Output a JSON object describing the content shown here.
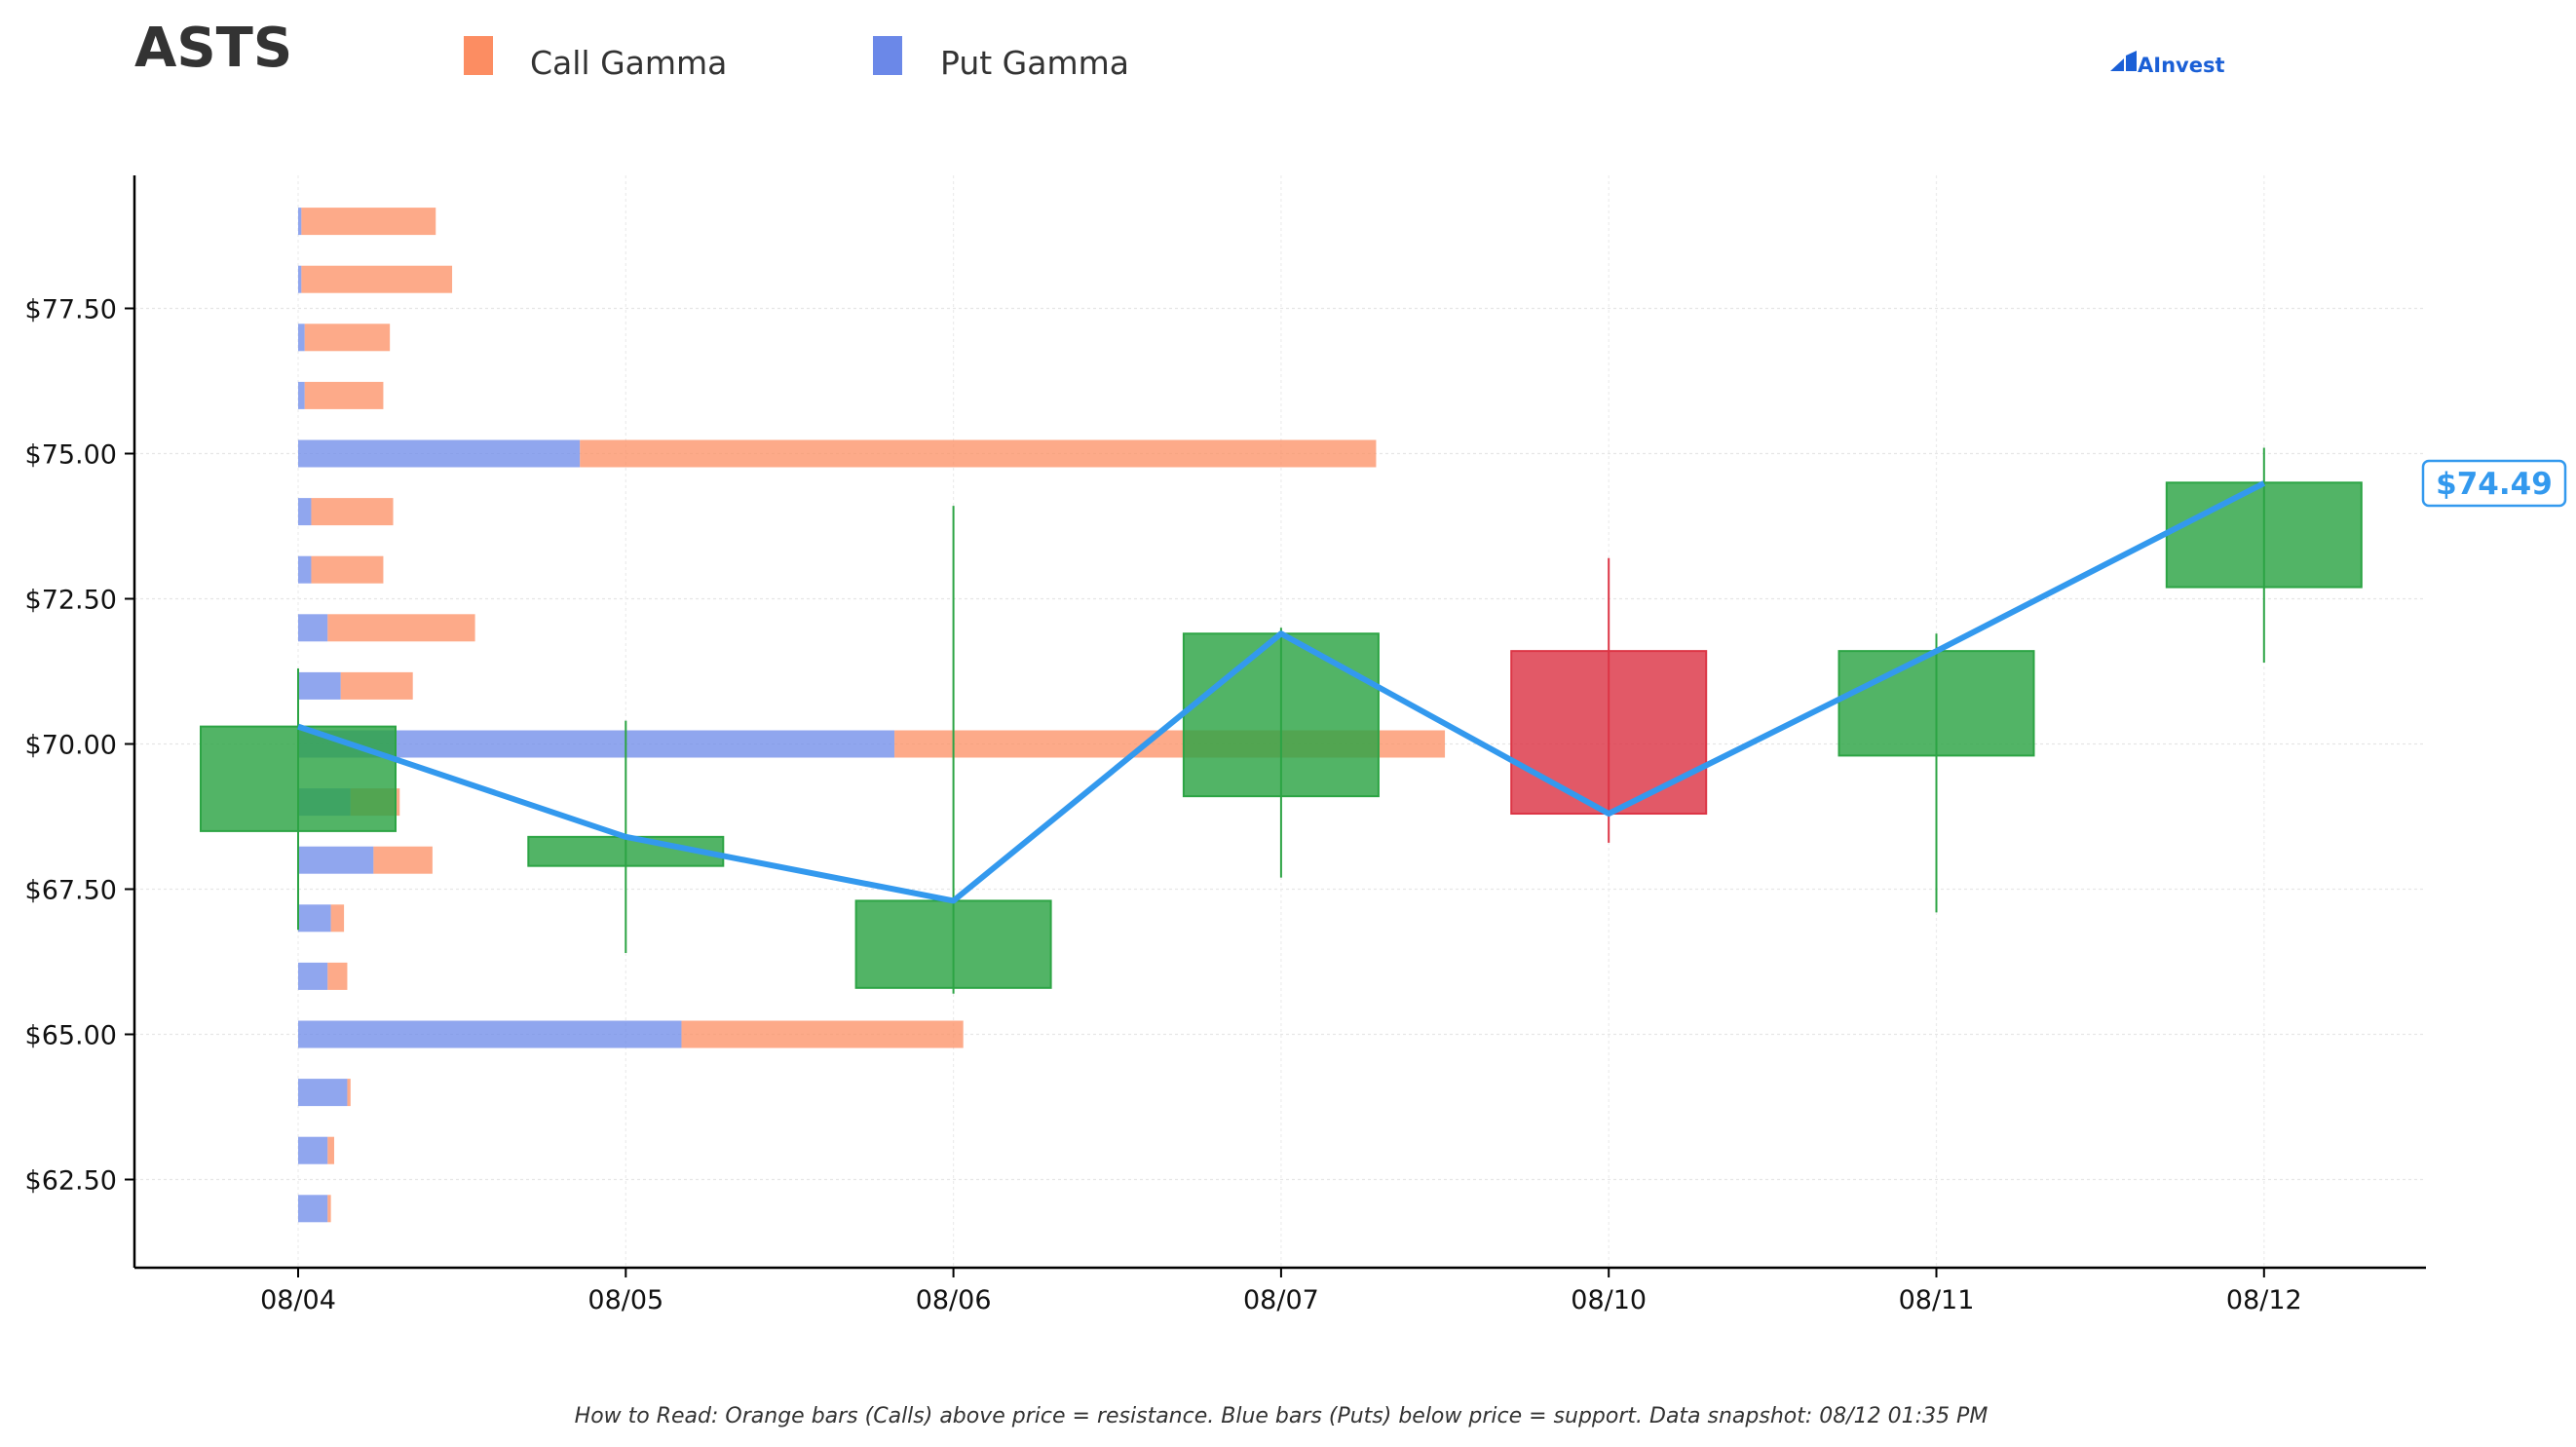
{
  "ticker": "ASTS",
  "brand": "AInvest",
  "legend": [
    {
      "label": "Call Gamma",
      "color": "#fc8d62"
    },
    {
      "label": "Put Gamma",
      "color": "#6b88e8"
    }
  ],
  "footnote": "How to Read: Orange bars (Calls) above price = resistance. Blue bars (Puts) below price = support. Data snapshot: 08/12 01:35 PM",
  "colors": {
    "up": "#2ca444",
    "down": "#dc3545",
    "price_line": "#3399ee",
    "call": "#fc8d62",
    "put": "#6b88e8"
  },
  "chart_data": {
    "type": "candlestick",
    "categories": [
      "08/04",
      "08/05",
      "08/06",
      "08/07",
      "08/10",
      "08/11",
      "08/12"
    ],
    "ylim": [
      61.0,
      80.0
    ],
    "yticks": [
      62.5,
      65.0,
      67.5,
      70.0,
      72.5,
      75.0,
      77.5
    ],
    "ytick_labels": [
      "$62.50",
      "$65.00",
      "$67.50",
      "$70.00",
      "$72.50",
      "$75.00",
      "$77.50"
    ],
    "grid": true,
    "candles": [
      {
        "date": "08/04",
        "open": 68.5,
        "close": 70.3,
        "high": 71.3,
        "low": 66.8
      },
      {
        "date": "08/05",
        "open": 67.9,
        "close": 68.4,
        "high": 70.4,
        "low": 66.4
      },
      {
        "date": "08/06",
        "open": 65.8,
        "close": 67.3,
        "high": 74.1,
        "low": 65.7
      },
      {
        "date": "08/07",
        "open": 69.1,
        "close": 71.9,
        "high": 72.0,
        "low": 67.7
      },
      {
        "date": "08/10",
        "open": 71.6,
        "close": 68.8,
        "high": 73.2,
        "low": 68.3
      },
      {
        "date": "08/11",
        "open": 69.8,
        "close": 71.6,
        "high": 71.9,
        "low": 67.1
      },
      {
        "date": "08/12",
        "open": 72.7,
        "close": 74.5,
        "high": 75.1,
        "low": 71.4
      }
    ],
    "price_line": {
      "name": "Close",
      "values": [
        70.3,
        68.4,
        67.3,
        71.9,
        68.8,
        71.6,
        74.49
      ]
    },
    "current_price_label": "$74.49",
    "gamma_exposure": {
      "unit": "x-axis category units of bar length from 08/04",
      "strikes": [
        62.0,
        63.0,
        64.0,
        65.0,
        66.0,
        67.0,
        68.0,
        69.0,
        70.0,
        71.0,
        72.0,
        73.0,
        74.0,
        75.0,
        76.0,
        77.0,
        78.0,
        79.0
      ],
      "put": [
        0.09,
        0.09,
        0.15,
        1.17,
        0.09,
        0.1,
        0.23,
        0.16,
        1.82,
        0.13,
        0.09,
        0.04,
        0.04,
        0.86,
        0.02,
        0.02,
        0.01,
        0.01
      ],
      "call": [
        0.01,
        0.02,
        0.01,
        0.86,
        0.06,
        0.04,
        0.18,
        0.15,
        1.68,
        0.22,
        0.45,
        0.22,
        0.25,
        2.43,
        0.24,
        0.26,
        0.46,
        0.41
      ]
    }
  }
}
